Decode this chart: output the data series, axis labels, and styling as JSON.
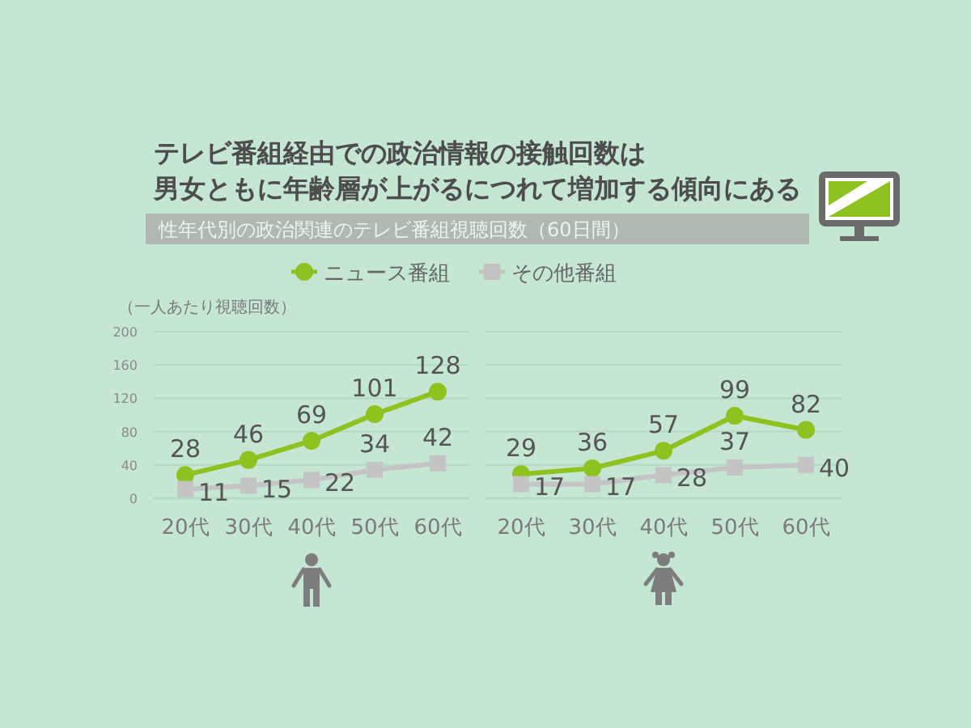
{
  "chart_data": [
    {
      "type": "line",
      "title": "テレビ番組経由での政治情報の接触回数は",
      "subtitle": "男女ともに年齢層が上がるにつれて増加する傾向にある",
      "annotations": [
        "性年代別の政治関連のテレビ番組視聴回数（60日間）"
      ],
      "ylabel": "（一人あたり視聴回数）",
      "categories": [
        "20代",
        "30代",
        "40代",
        "50代",
        "60代"
      ],
      "series": [
        {
          "name": "ニュース番組",
          "color": "#8dc21f",
          "marker": "circle",
          "values": [
            28,
            46,
            69,
            101,
            128
          ]
        },
        {
          "name": "その他番組",
          "color": "#c4c4c4",
          "marker": "square",
          "values": [
            11,
            15,
            22,
            34,
            42
          ]
        }
      ],
      "ylim": [
        0,
        200
      ],
      "yticks": [
        0,
        40,
        80,
        120,
        160,
        200
      ],
      "grid": "y",
      "legend": "top",
      "data_labels": true
    },
    {
      "type": "line",
      "categories": [
        "20代",
        "30代",
        "40代",
        "50代",
        "60代"
      ],
      "series": [
        {
          "color": "#8dc21f",
          "marker": "circle",
          "values": [
            29,
            36,
            57,
            99,
            82
          ]
        },
        {
          "color": "#c4c4c4",
          "marker": "square",
          "values": [
            17,
            17,
            28,
            37,
            40
          ]
        }
      ],
      "ylim": [
        0,
        200
      ],
      "yticks": [
        0,
        40,
        80,
        120,
        160,
        200
      ],
      "tick_labels": "x",
      "grid": "y",
      "data_labels": true
    }
  ]
}
